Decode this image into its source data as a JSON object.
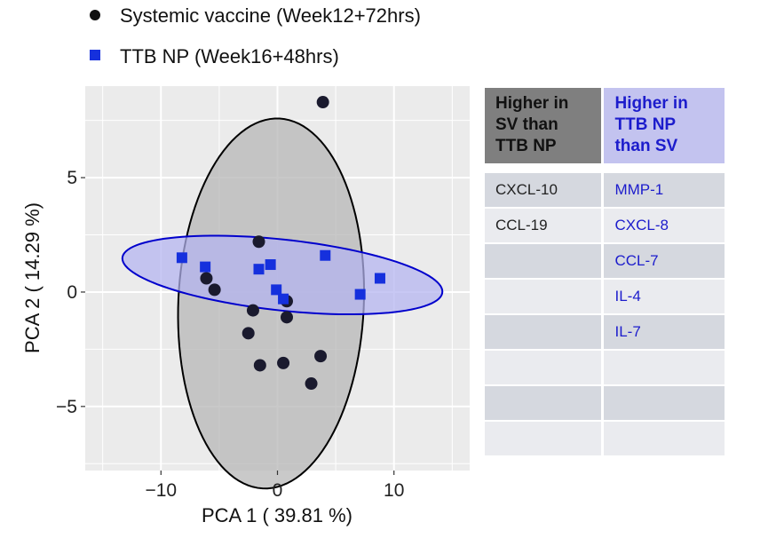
{
  "chart_data": {
    "type": "scatter",
    "title": "",
    "xlabel": "PCA 1 ( 39.81 %)",
    "ylabel": "PCA 2 ( 14.29 %)",
    "xlim": [
      -16.5,
      16.5
    ],
    "ylim": [
      -7.8,
      9.0
    ],
    "xticks": [
      -10,
      0,
      10
    ],
    "yticks": [
      -5,
      0,
      5
    ],
    "xtick_labels": [
      "−10",
      "0",
      "10"
    ],
    "ytick_labels": [
      "−5",
      "0",
      "5"
    ],
    "grid": true,
    "legend_position": "top",
    "series": [
      {
        "name": "Systemic vaccine (Week12+72hrs)",
        "marker": "circle",
        "color": "#1a1a2e",
        "ellipse_fill": "#b4b4b4",
        "ellipse_stroke": "#000000",
        "points": [
          {
            "x": 3.9,
            "y": 8.3
          },
          {
            "x": -1.6,
            "y": 2.2
          },
          {
            "x": -6.1,
            "y": 0.6
          },
          {
            "x": -5.4,
            "y": 0.1
          },
          {
            "x": -2.1,
            "y": -0.8
          },
          {
            "x": 0.8,
            "y": -0.4
          },
          {
            "x": 0.8,
            "y": -1.1
          },
          {
            "x": -2.5,
            "y": -1.8
          },
          {
            "x": 3.7,
            "y": -2.8
          },
          {
            "x": -1.5,
            "y": -3.2
          },
          {
            "x": 0.5,
            "y": -3.1
          },
          {
            "x": 2.9,
            "y": -4.0
          }
        ]
      },
      {
        "name": "TTB NP (Week16+48hrs)",
        "marker": "square",
        "color": "#1530dd",
        "ellipse_fill": "#b3b3f0",
        "ellipse_stroke": "#0000cc",
        "points": [
          {
            "x": -8.2,
            "y": 1.5
          },
          {
            "x": -6.2,
            "y": 1.1
          },
          {
            "x": -1.6,
            "y": 1.0
          },
          {
            "x": -0.6,
            "y": 1.2
          },
          {
            "x": 4.1,
            "y": 1.6
          },
          {
            "x": -0.1,
            "y": 0.1
          },
          {
            "x": 0.5,
            "y": -0.3
          },
          {
            "x": 7.1,
            "y": -0.1
          },
          {
            "x": 8.8,
            "y": 0.6
          }
        ]
      }
    ]
  },
  "table": {
    "headers": [
      "Higher in SV than TTB NP",
      "Higher in TTB NP than SV"
    ],
    "header_lines": [
      [
        "Higher in",
        "SV than",
        "TTB NP"
      ],
      [
        "Higher in",
        "TTB NP",
        "than SV"
      ]
    ],
    "rows": [
      [
        "CXCL-10",
        "MMP-1"
      ],
      [
        "CCL-19",
        "CXCL-8"
      ],
      [
        "",
        "CCL-7"
      ],
      [
        "",
        "IL-4"
      ],
      [
        "",
        "IL-7"
      ],
      [
        "",
        ""
      ],
      [
        "",
        ""
      ],
      [
        "",
        ""
      ]
    ],
    "colors": {
      "sv_header": "#7f7f7f",
      "ttb_header": "#c3c3ef",
      "ttb_text": "#1c1ccc"
    }
  }
}
